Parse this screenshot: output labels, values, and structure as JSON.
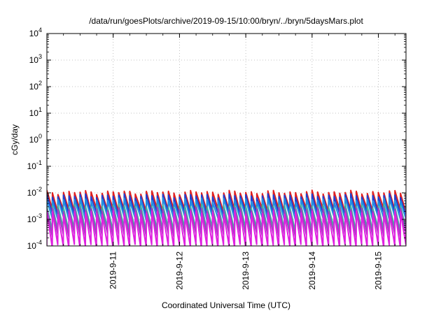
{
  "chart_data": {
    "type": "line",
    "title": "/data/run/goesPlots/archive/2019-09-15/10:00/bryn/../bryn/5daysMars.plot",
    "xlabel": "Coordinated Universal Time (UTC)",
    "ylabel": "cGy/day",
    "y_scale": "log",
    "ylim": [
      0.0001,
      10000
    ],
    "xlim": [
      "2019-09-10T00:00",
      "2019-09-15T10:00"
    ],
    "y_ticks": [
      {
        "base": "10",
        "exp": "-4",
        "value": 0.0001
      },
      {
        "base": "10",
        "exp": "-3",
        "value": 0.001
      },
      {
        "base": "10",
        "exp": "-2",
        "value": 0.01
      },
      {
        "base": "10",
        "exp": "-1",
        "value": 0.1
      },
      {
        "base": "10",
        "exp": "0",
        "value": 1
      },
      {
        "base": "10",
        "exp": "1",
        "value": 10
      },
      {
        "base": "10",
        "exp": "2",
        "value": 100
      },
      {
        "base": "10",
        "exp": "3",
        "value": 1000
      },
      {
        "base": "10",
        "exp": "4",
        "value": 10000
      }
    ],
    "x_ticks": [
      {
        "label": "2019-9-11",
        "date": "2019-09-11T00:00"
      },
      {
        "label": "2019-9-12",
        "date": "2019-09-12T00:00"
      },
      {
        "label": "2019-9-13",
        "date": "2019-09-13T00:00"
      },
      {
        "label": "2019-9-14",
        "date": "2019-09-14T00:00"
      },
      {
        "label": "2019-9-15",
        "date": "2019-09-15T00:00"
      }
    ],
    "grid": true,
    "sawtooth_period_hours": 2,
    "series": [
      {
        "color": "#e02020",
        "peak": 0.0105,
        "trough": 0.0022
      },
      {
        "color": "#2040d0",
        "peak": 0.0078,
        "trough": 0.0016
      },
      {
        "color": "#2090e0",
        "peak": 0.0055,
        "trough": 0.0011
      },
      {
        "color": "#40b0a0",
        "peak": 0.0032,
        "trough": 0.00042
      },
      {
        "color": "#a040c0",
        "peak": 0.0024,
        "trough": 0.00026
      },
      {
        "color": "#e020e0",
        "peak": 0.0018,
        "trough": 0.0001
      }
    ]
  }
}
